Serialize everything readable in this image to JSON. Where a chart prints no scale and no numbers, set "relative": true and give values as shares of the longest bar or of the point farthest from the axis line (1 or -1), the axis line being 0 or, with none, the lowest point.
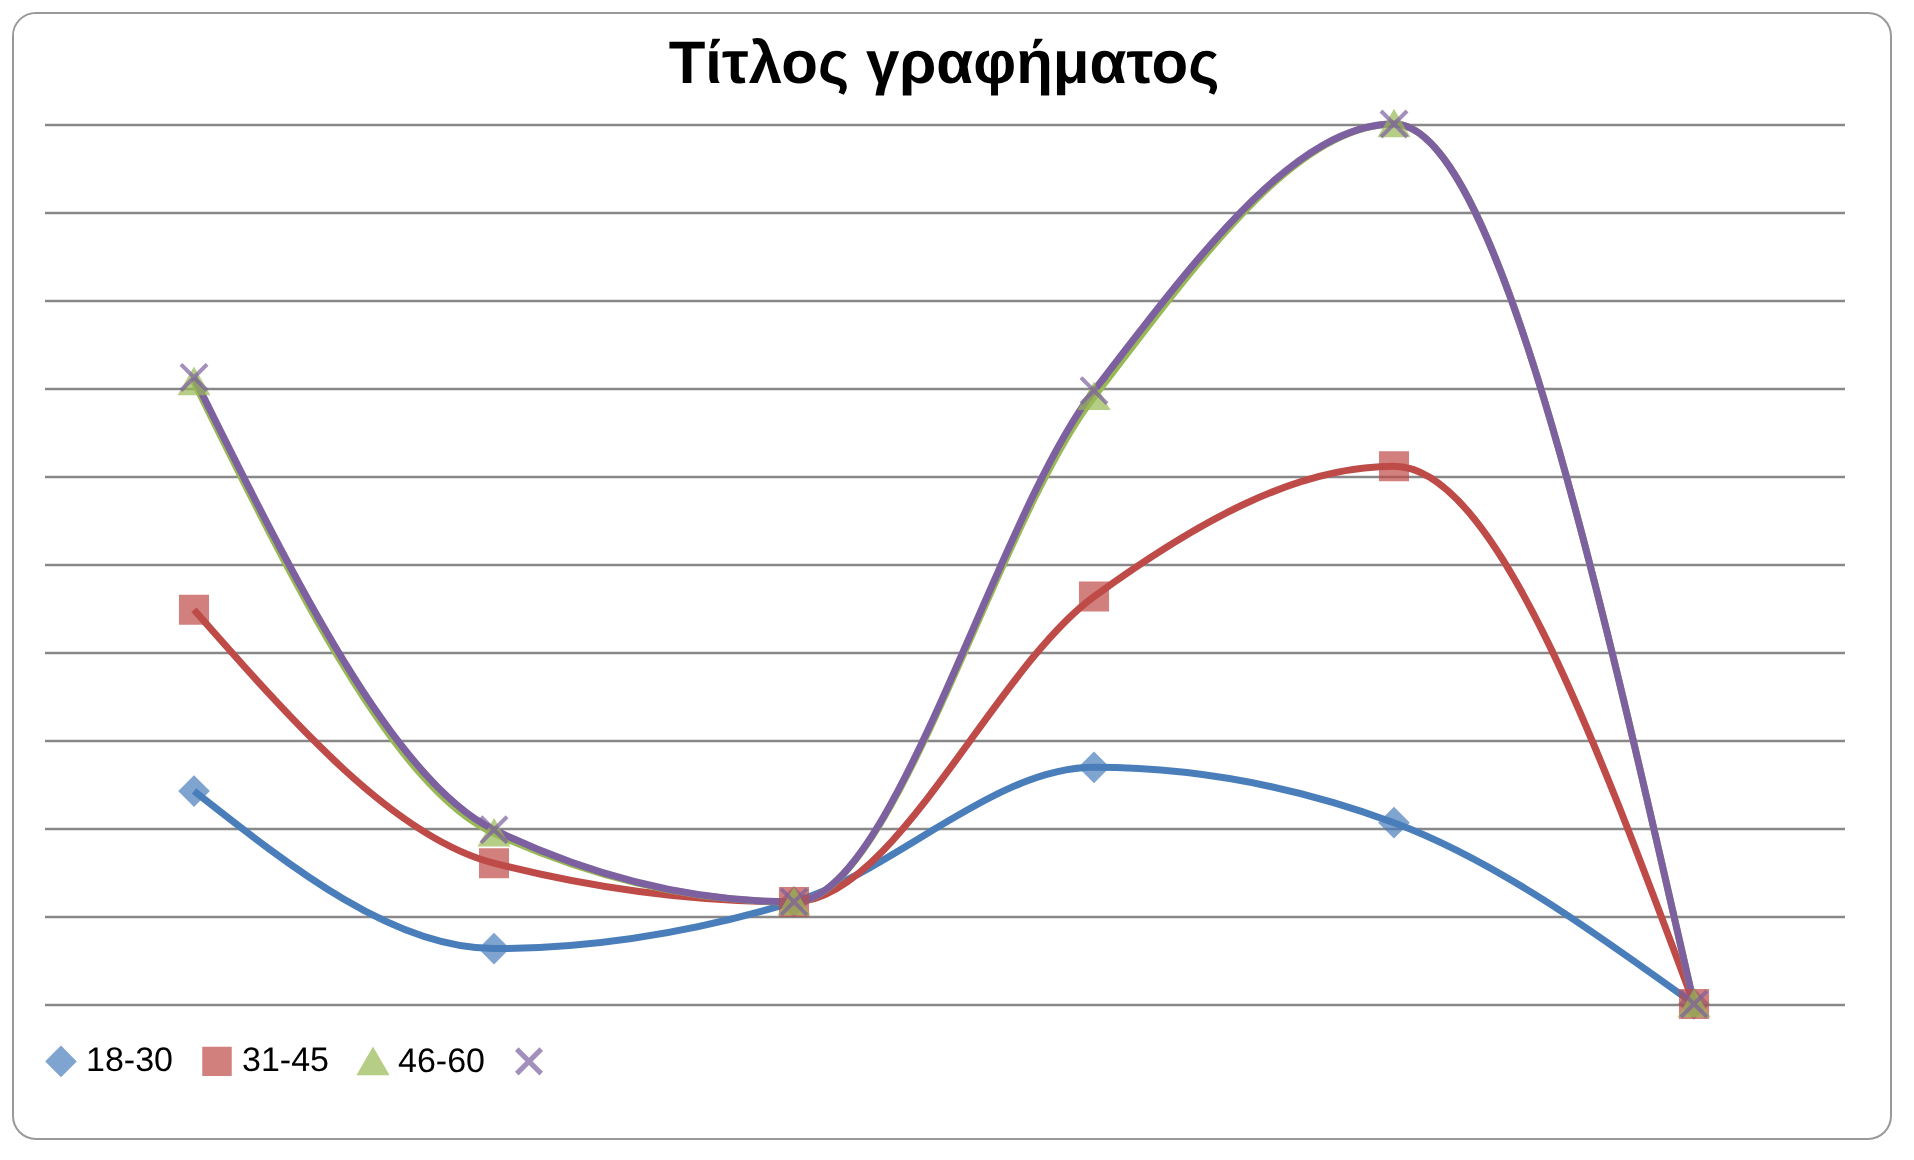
{
  "chart_data": {
    "type": "line",
    "title": "Τίτλος γραφήματος",
    "relative": true,
    "categories": [
      null,
      null,
      null,
      null,
      null,
      null
    ],
    "series": [
      {
        "name": "18-30",
        "color": "#4a7ebb",
        "marker": "diamond",
        "values": [
          0.242,
          0.063,
          0.116,
          0.269,
          0.206,
          0
        ]
      },
      {
        "name": "31-45",
        "color": "#be4b48",
        "marker": "square",
        "values": [
          0.448,
          0.16,
          0.116,
          0.463,
          0.611,
          0
        ]
      },
      {
        "name": "46-60",
        "color": "#98b954",
        "marker": "triangle",
        "values": [
          0.707,
          0.194,
          0.116,
          0.69,
          1,
          0
        ]
      },
      {
        "color": "#7d60a0",
        "marker": "cross",
        "values": [
          0.712,
          0.198,
          0.116,
          0.697,
          1,
          0
        ]
      }
    ],
    "grid": "y",
    "legend": "bottom"
  }
}
